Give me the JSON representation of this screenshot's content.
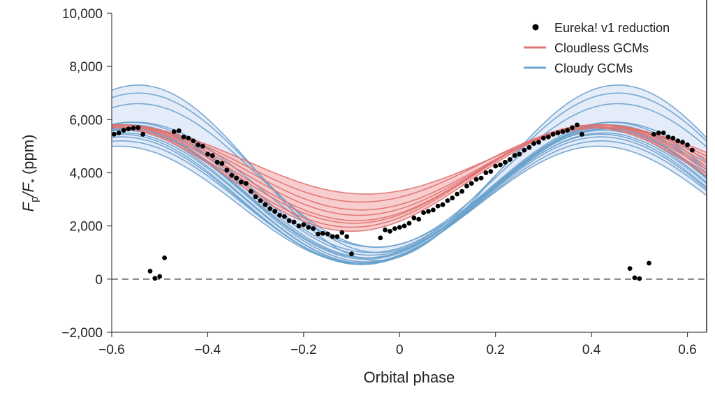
{
  "chart_data": {
    "type": "line",
    "title": "",
    "xlabel": "Orbital phase",
    "ylabel_main": "F",
    "ylabel_sub_p": "p",
    "ylabel_slash": "/F",
    "ylabel_sub_star": "*",
    "ylabel_unit": " (ppm)",
    "xlim": [
      -0.6,
      0.64
    ],
    "ylim": [
      -2000,
      10000
    ],
    "xticks": [
      -0.6,
      -0.4,
      -0.2,
      0,
      0.2,
      0.4,
      0.6
    ],
    "xtick_labels": [
      "−0.6",
      "−0.4",
      "−0.2",
      "0",
      "0.2",
      "0.4",
      "0.6"
    ],
    "yticks": [
      -2000,
      0,
      2000,
      4000,
      6000,
      8000,
      10000
    ],
    "ytick_labels": [
      "−2,000",
      "0",
      "2,000",
      "4,000",
      "6,000",
      "8,000",
      "10,000"
    ],
    "zero_line": {
      "y": 0,
      "style": "dashed",
      "color": "#555555"
    },
    "legend": {
      "placement": "top-right",
      "entries": [
        {
          "label": "Eureka! v1 reduction",
          "type": "marker",
          "color": "#000000"
        },
        {
          "label": "Cloudless GCMs",
          "type": "line",
          "color": "#e07a7a"
        },
        {
          "label": "Cloudy GCMs",
          "type": "line",
          "color": "#6aa6d4"
        }
      ]
    },
    "colors": {
      "cloudless_line": "#e07070",
      "cloudless_fill": "#f7c4c4",
      "cloudy_line": "#6aa2cc",
      "cloudy_fill": "#dfe8f8",
      "data": "#000000"
    },
    "model_form": "F(x) = mean + amp * cos(2*pi*(x - peak_phase)), period = 1 orbital phase",
    "series": [
      {
        "name": "Cloudy GCMs",
        "group": "cloudy",
        "models": [
          {
            "mean": 4000,
            "amp": 3300,
            "peak": 0.455
          },
          {
            "mean": 4000,
            "amp": 3000,
            "peak": 0.455
          },
          {
            "mean": 3900,
            "amp": 2700,
            "peak": 0.455
          },
          {
            "mean": 3550,
            "amp": 2350,
            "peak": 0.45
          },
          {
            "mean": 3450,
            "amp": 2450,
            "peak": 0.44
          },
          {
            "mean": 3350,
            "amp": 2450,
            "peak": 0.44
          },
          {
            "mean": 3300,
            "amp": 2500,
            "peak": 0.435
          },
          {
            "mean": 3250,
            "amp": 2450,
            "peak": 0.43
          },
          {
            "mean": 3200,
            "amp": 2450,
            "peak": 0.43
          },
          {
            "mean": 3150,
            "amp": 2500,
            "peak": 0.43
          },
          {
            "mean": 3100,
            "amp": 2500,
            "peak": 0.425
          },
          {
            "mean": 3050,
            "amp": 2450,
            "peak": 0.425
          },
          {
            "mean": 3000,
            "amp": 2450,
            "peak": 0.42
          },
          {
            "mean": 2950,
            "amp": 2400,
            "peak": 0.42
          },
          {
            "mean": 2900,
            "amp": 2300,
            "peak": 0.42
          },
          {
            "mean": 2800,
            "amp": 2200,
            "peak": 0.415
          }
        ]
      },
      {
        "name": "Cloudless GCMs",
        "group": "cloudless",
        "models": [
          {
            "mean": 4450,
            "amp": 1250,
            "peak": 0.43
          },
          {
            "mean": 4350,
            "amp": 1450,
            "peak": 0.42
          },
          {
            "mean": 4200,
            "amp": 1600,
            "peak": 0.42
          },
          {
            "mean": 4100,
            "amp": 1700,
            "peak": 0.415
          },
          {
            "mean": 4000,
            "amp": 1800,
            "peak": 0.41
          },
          {
            "mean": 3950,
            "amp": 1850,
            "peak": 0.405
          },
          {
            "mean": 3850,
            "amp": 1900,
            "peak": 0.4
          },
          {
            "mean": 3750,
            "amp": 1950,
            "peak": 0.4
          }
        ]
      },
      {
        "name": "Eureka! v1 reduction",
        "group": "data",
        "points": [
          [
            -0.595,
            5450
          ],
          [
            -0.585,
            5500
          ],
          [
            -0.575,
            5600
          ],
          [
            -0.565,
            5650
          ],
          [
            -0.555,
            5680
          ],
          [
            -0.545,
            5700
          ],
          [
            -0.535,
            5450
          ],
          [
            -0.52,
            300
          ],
          [
            -0.51,
            30
          ],
          [
            -0.5,
            100
          ],
          [
            -0.49,
            800
          ],
          [
            -0.47,
            5550
          ],
          [
            -0.46,
            5580
          ],
          [
            -0.45,
            5350
          ],
          [
            -0.44,
            5300
          ],
          [
            -0.43,
            5200
          ],
          [
            -0.42,
            5050
          ],
          [
            -0.41,
            5000
          ],
          [
            -0.4,
            4700
          ],
          [
            -0.39,
            4650
          ],
          [
            -0.38,
            4400
          ],
          [
            -0.37,
            4350
          ],
          [
            -0.36,
            4100
          ],
          [
            -0.35,
            3900
          ],
          [
            -0.34,
            3800
          ],
          [
            -0.33,
            3650
          ],
          [
            -0.32,
            3600
          ],
          [
            -0.31,
            3300
          ],
          [
            -0.3,
            3100
          ],
          [
            -0.29,
            2950
          ],
          [
            -0.28,
            2800
          ],
          [
            -0.27,
            2650
          ],
          [
            -0.26,
            2550
          ],
          [
            -0.25,
            2400
          ],
          [
            -0.24,
            2350
          ],
          [
            -0.23,
            2200
          ],
          [
            -0.22,
            2150
          ],
          [
            -0.21,
            2000
          ],
          [
            -0.2,
            2050
          ],
          [
            -0.19,
            1950
          ],
          [
            -0.18,
            1900
          ],
          [
            -0.17,
            1700
          ],
          [
            -0.16,
            1720
          ],
          [
            -0.15,
            1700
          ],
          [
            -0.14,
            1600
          ],
          [
            -0.13,
            1600
          ],
          [
            -0.12,
            1750
          ],
          [
            -0.11,
            1600
          ],
          [
            -0.1,
            950
          ],
          [
            -0.04,
            1550
          ],
          [
            -0.03,
            1850
          ],
          [
            -0.02,
            1800
          ],
          [
            -0.01,
            1900
          ],
          [
            0.0,
            1950
          ],
          [
            0.01,
            2000
          ],
          [
            0.02,
            2100
          ],
          [
            0.03,
            2300
          ],
          [
            0.04,
            2250
          ],
          [
            0.05,
            2500
          ],
          [
            0.06,
            2550
          ],
          [
            0.07,
            2600
          ],
          [
            0.08,
            2750
          ],
          [
            0.09,
            2800
          ],
          [
            0.1,
            2950
          ],
          [
            0.11,
            3050
          ],
          [
            0.12,
            3200
          ],
          [
            0.13,
            3300
          ],
          [
            0.14,
            3500
          ],
          [
            0.15,
            3600
          ],
          [
            0.16,
            3750
          ],
          [
            0.17,
            3800
          ],
          [
            0.18,
            4000
          ],
          [
            0.19,
            4050
          ],
          [
            0.2,
            4250
          ],
          [
            0.21,
            4300
          ],
          [
            0.22,
            4400
          ],
          [
            0.23,
            4500
          ],
          [
            0.24,
            4650
          ],
          [
            0.25,
            4700
          ],
          [
            0.26,
            4850
          ],
          [
            0.27,
            4950
          ],
          [
            0.28,
            5100
          ],
          [
            0.29,
            5150
          ],
          [
            0.3,
            5300
          ],
          [
            0.31,
            5350
          ],
          [
            0.32,
            5450
          ],
          [
            0.33,
            5500
          ],
          [
            0.34,
            5550
          ],
          [
            0.35,
            5600
          ],
          [
            0.36,
            5700
          ],
          [
            0.37,
            5800
          ],
          [
            0.38,
            5450
          ],
          [
            0.48,
            400
          ],
          [
            0.49,
            50
          ],
          [
            0.5,
            20
          ],
          [
            0.52,
            600
          ],
          [
            0.53,
            5450
          ],
          [
            0.54,
            5500
          ],
          [
            0.55,
            5500
          ],
          [
            0.56,
            5350
          ],
          [
            0.57,
            5300
          ],
          [
            0.58,
            5200
          ],
          [
            0.59,
            5150
          ],
          [
            0.6,
            5050
          ],
          [
            0.61,
            4850
          ]
        ]
      }
    ]
  }
}
